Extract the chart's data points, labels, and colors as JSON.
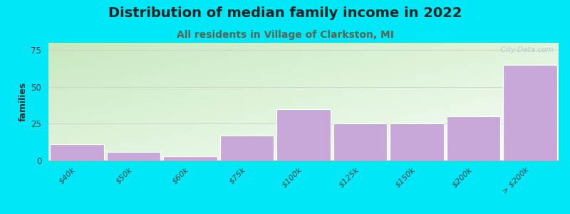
{
  "title": "Distribution of median family income in 2022",
  "subtitle": "All residents in Village of Clarkston, MI",
  "categories": [
    "$40k",
    "$50k",
    "$60k",
    "$75k",
    "$100k",
    "$125k",
    "$150k",
    "$200k",
    "> $200k"
  ],
  "values": [
    11,
    6,
    3,
    17,
    35,
    25,
    25,
    30,
    65
  ],
  "bar_color": "#c8a8d8",
  "bar_edgecolor": "#ffffff",
  "ylabel": "families",
  "ylim": [
    0,
    80
  ],
  "yticks": [
    0,
    25,
    50,
    75
  ],
  "background_outer": "#00e8f8",
  "background_inner_topleft": "#c8e8c0",
  "background_inner_bottomright": "#f8fff8",
  "title_fontsize": 14,
  "subtitle_fontsize": 10,
  "subtitle_color": "#556655",
  "title_color": "#222222",
  "watermark": "  City-Data.com"
}
